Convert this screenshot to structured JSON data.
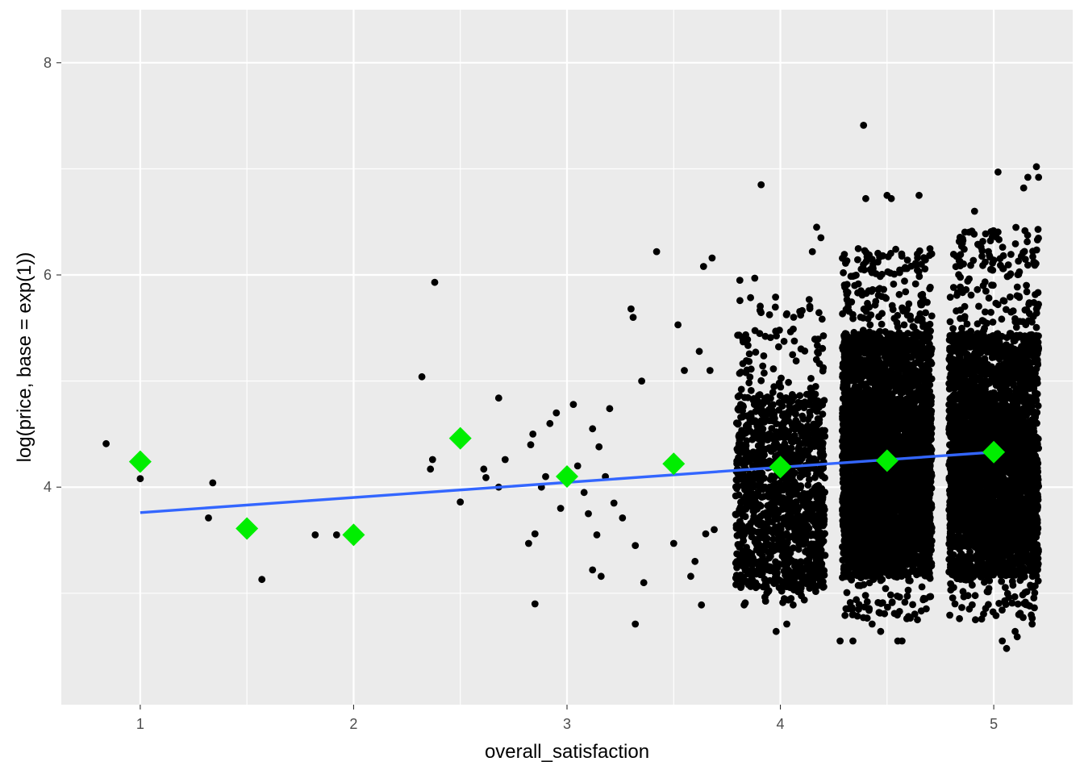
{
  "chart_data": {
    "type": "scatter",
    "title": "",
    "xlabel": "overall_satisfaction",
    "ylabel": "log(price, base = exp(1))",
    "xlim": [
      0.63,
      5.37
    ],
    "ylim": [
      1.95,
      8.5
    ],
    "x_ticks": [
      1,
      2,
      3,
      4,
      5
    ],
    "y_ticks": [
      4,
      6,
      8
    ],
    "grid": true,
    "background": "#ebebeb",
    "colors": {
      "points": "#000000",
      "means": "#00ee00",
      "fit_line": "#3366ff"
    },
    "trend_line": {
      "x": [
        1,
        5
      ],
      "y": [
        3.76,
        4.33
      ]
    },
    "group_means": {
      "x": [
        1,
        1.5,
        2,
        2.5,
        3,
        3.5,
        4,
        4.5,
        5
      ],
      "y": [
        4.24,
        3.61,
        3.55,
        4.46,
        4.1,
        4.22,
        4.19,
        4.25,
        4.33
      ]
    },
    "sparse_points": [
      {
        "x": 0.84,
        "y": 4.41
      },
      {
        "x": 1.0,
        "y": 4.08
      },
      {
        "x": 1.32,
        "y": 3.71
      },
      {
        "x": 1.34,
        "y": 4.04
      },
      {
        "x": 1.57,
        "y": 3.13
      },
      {
        "x": 1.82,
        "y": 3.55
      },
      {
        "x": 1.92,
        "y": 3.55
      },
      {
        "x": 2.32,
        "y": 5.04
      },
      {
        "x": 2.36,
        "y": 4.17
      },
      {
        "x": 2.37,
        "y": 4.26
      },
      {
        "x": 2.38,
        "y": 5.93
      },
      {
        "x": 2.5,
        "y": 3.86
      },
      {
        "x": 2.61,
        "y": 4.17
      },
      {
        "x": 2.62,
        "y": 4.09
      },
      {
        "x": 2.68,
        "y": 4.84
      },
      {
        "x": 2.68,
        "y": 4.0
      },
      {
        "x": 2.71,
        "y": 4.26
      },
      {
        "x": 2.82,
        "y": 3.47
      },
      {
        "x": 2.83,
        "y": 4.4
      },
      {
        "x": 2.85,
        "y": 3.56
      },
      {
        "x": 2.85,
        "y": 2.9
      },
      {
        "x": 2.84,
        "y": 4.5
      },
      {
        "x": 2.88,
        "y": 4.0
      },
      {
        "x": 2.9,
        "y": 4.1
      },
      {
        "x": 2.92,
        "y": 4.6
      },
      {
        "x": 2.95,
        "y": 4.7
      },
      {
        "x": 2.97,
        "y": 3.8
      },
      {
        "x": 3.03,
        "y": 4.78
      },
      {
        "x": 3.05,
        "y": 4.2
      },
      {
        "x": 3.08,
        "y": 3.95
      },
      {
        "x": 3.1,
        "y": 3.75
      },
      {
        "x": 3.12,
        "y": 4.55
      },
      {
        "x": 3.14,
        "y": 3.55
      },
      {
        "x": 3.16,
        "y": 3.16
      },
      {
        "x": 3.18,
        "y": 4.1
      },
      {
        "x": 3.2,
        "y": 4.74
      },
      {
        "x": 3.22,
        "y": 3.85
      },
      {
        "x": 3.26,
        "y": 3.71
      },
      {
        "x": 3.12,
        "y": 3.22
      },
      {
        "x": 3.15,
        "y": 4.38
      },
      {
        "x": 3.3,
        "y": 5.68
      },
      {
        "x": 3.31,
        "y": 5.6
      },
      {
        "x": 3.32,
        "y": 2.71
      },
      {
        "x": 3.35,
        "y": 5.0
      },
      {
        "x": 3.42,
        "y": 6.22
      },
      {
        "x": 3.52,
        "y": 5.53
      },
      {
        "x": 3.5,
        "y": 3.47
      },
      {
        "x": 3.55,
        "y": 5.1
      },
      {
        "x": 3.58,
        "y": 3.16
      },
      {
        "x": 3.6,
        "y": 3.3
      },
      {
        "x": 3.62,
        "y": 5.28
      },
      {
        "x": 3.63,
        "y": 2.89
      },
      {
        "x": 3.64,
        "y": 6.08
      },
      {
        "x": 3.68,
        "y": 6.16
      },
      {
        "x": 3.65,
        "y": 3.56
      },
      {
        "x": 3.67,
        "y": 5.1
      },
      {
        "x": 3.69,
        "y": 3.6
      },
      {
        "x": 3.32,
        "y": 3.45
      },
      {
        "x": 3.36,
        "y": 3.1
      },
      {
        "x": 3.81,
        "y": 5.95
      },
      {
        "x": 3.83,
        "y": 2.89
      },
      {
        "x": 3.88,
        "y": 5.97
      },
      {
        "x": 3.98,
        "y": 2.64
      },
      {
        "x": 4.03,
        "y": 2.71
      },
      {
        "x": 4.06,
        "y": 2.89
      },
      {
        "x": 4.15,
        "y": 6.22
      },
      {
        "x": 4.17,
        "y": 6.45
      },
      {
        "x": 4.19,
        "y": 6.35
      },
      {
        "x": 3.91,
        "y": 6.85
      },
      {
        "x": 4.28,
        "y": 2.55
      },
      {
        "x": 4.34,
        "y": 2.55
      },
      {
        "x": 4.39,
        "y": 7.41
      },
      {
        "x": 4.4,
        "y": 6.72
      },
      {
        "x": 4.5,
        "y": 6.75
      },
      {
        "x": 4.52,
        "y": 6.72
      },
      {
        "x": 4.55,
        "y": 2.55
      },
      {
        "x": 4.57,
        "y": 2.55
      },
      {
        "x": 4.65,
        "y": 6.75
      },
      {
        "x": 4.43,
        "y": 2.71
      },
      {
        "x": 4.47,
        "y": 2.64
      },
      {
        "x": 5.02,
        "y": 6.97
      },
      {
        "x": 5.04,
        "y": 2.55
      },
      {
        "x": 5.06,
        "y": 2.48
      },
      {
        "x": 5.1,
        "y": 2.64
      },
      {
        "x": 5.11,
        "y": 2.59
      },
      {
        "x": 5.16,
        "y": 6.92
      },
      {
        "x": 5.18,
        "y": 2.71
      },
      {
        "x": 5.2,
        "y": 7.02
      },
      {
        "x": 5.21,
        "y": 6.92
      },
      {
        "x": 4.91,
        "y": 6.6
      },
      {
        "x": 5.14,
        "y": 6.82
      }
    ],
    "dense_clusters": [
      {
        "x_range": [
          3.79,
          4.21
        ],
        "y_range": [
          3.05,
          4.88
        ],
        "count": 750
      },
      {
        "x_range": [
          3.79,
          4.21
        ],
        "y_range": [
          2.9,
          5.8
        ],
        "count": 240
      },
      {
        "x_range": [
          3.79,
          4.21
        ],
        "y_range": [
          3.05,
          4.55
        ],
        "count": 300
      },
      {
        "x_range": [
          4.29,
          4.71
        ],
        "y_range": [
          3.15,
          5.45
        ],
        "count": 2400
      },
      {
        "x_range": [
          4.29,
          4.71
        ],
        "y_range": [
          2.75,
          6.25
        ],
        "count": 650
      },
      {
        "x_range": [
          4.29,
          4.71
        ],
        "y_range": [
          3.4,
          4.75
        ],
        "count": 900
      },
      {
        "x_range": [
          4.79,
          5.21
        ],
        "y_range": [
          3.15,
          5.45
        ],
        "count": 2200
      },
      {
        "x_range": [
          4.79,
          5.21
        ],
        "y_range": [
          2.75,
          6.45
        ],
        "count": 650
      },
      {
        "x_range": [
          4.79,
          5.21
        ],
        "y_range": [
          3.4,
          4.75
        ],
        "count": 850
      }
    ]
  }
}
